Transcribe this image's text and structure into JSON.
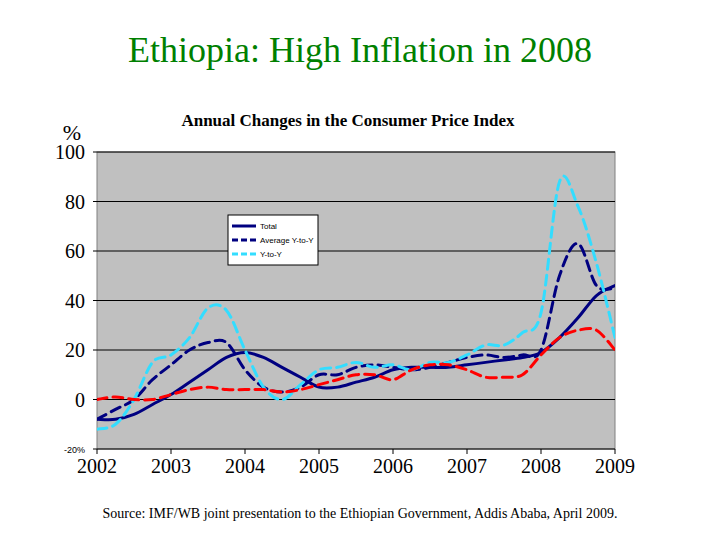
{
  "chart_data": {
    "type": "line",
    "title": "Ethiopia: High Inflation in 2008",
    "subtitle": "Annual Changes in the Consumer Price Index",
    "y_label": "%",
    "source": "Source: IMF/WB joint presentation to the Ethiopian Government, Addis Ababa, April 2009.",
    "x": [
      2002,
      2002.25,
      2002.5,
      2002.75,
      2003,
      2003.25,
      2003.5,
      2003.75,
      2004,
      2004.25,
      2004.5,
      2004.75,
      2005,
      2005.25,
      2005.5,
      2005.75,
      2006,
      2006.25,
      2006.5,
      2006.75,
      2007,
      2007.25,
      2007.5,
      2007.75,
      2008,
      2008.25,
      2008.5,
      2008.75,
      2009
    ],
    "xlim": [
      2002,
      2009
    ],
    "xticks": [
      2002,
      2003,
      2004,
      2005,
      2006,
      2007,
      2008,
      2009
    ],
    "ylim": [
      -20,
      100
    ],
    "yticks": [
      {
        "value": -20,
        "label": "-20%"
      },
      0,
      20,
      40,
      60,
      80,
      100
    ],
    "grid": true,
    "legend": "top-left",
    "series": [
      {
        "name": "Total",
        "color": "#000080",
        "line_style": "solid",
        "values": [
          -8,
          -8,
          -6,
          -2,
          2,
          7,
          12,
          17,
          19,
          17,
          13,
          9,
          5,
          5,
          7,
          9,
          12,
          13,
          13,
          13,
          14,
          15,
          16,
          17,
          19,
          25,
          33,
          42,
          46
        ]
      },
      {
        "name": "Average Y-to-Y",
        "color": "#000080",
        "line_style": "dashed",
        "values": [
          -8,
          -4,
          0,
          8,
          14,
          20,
          23,
          23,
          12,
          5,
          3,
          5,
          10,
          10,
          13,
          14,
          13,
          12,
          13,
          15,
          17,
          18,
          17,
          18,
          20,
          50,
          63,
          46,
          45
        ]
      },
      {
        "name": "Y-to-Y",
        "color": "#33ddff",
        "line_style": "dashed",
        "values": [
          -12,
          -10,
          0,
          15,
          18,
          25,
          37,
          36,
          20,
          5,
          0,
          6,
          12,
          13,
          15,
          13,
          14,
          12,
          15,
          15,
          18,
          22,
          22,
          27,
          35,
          88,
          78,
          55,
          25
        ]
      },
      {
        "color": "#ff0000",
        "line_style": "dashed",
        "values": [
          0,
          1,
          0,
          0,
          2,
          4,
          5,
          4,
          4,
          4,
          3,
          4,
          6,
          8,
          10,
          10,
          8,
          12,
          14,
          14,
          12,
          9,
          9,
          10,
          18,
          25,
          28,
          28,
          20
        ]
      }
    ]
  }
}
